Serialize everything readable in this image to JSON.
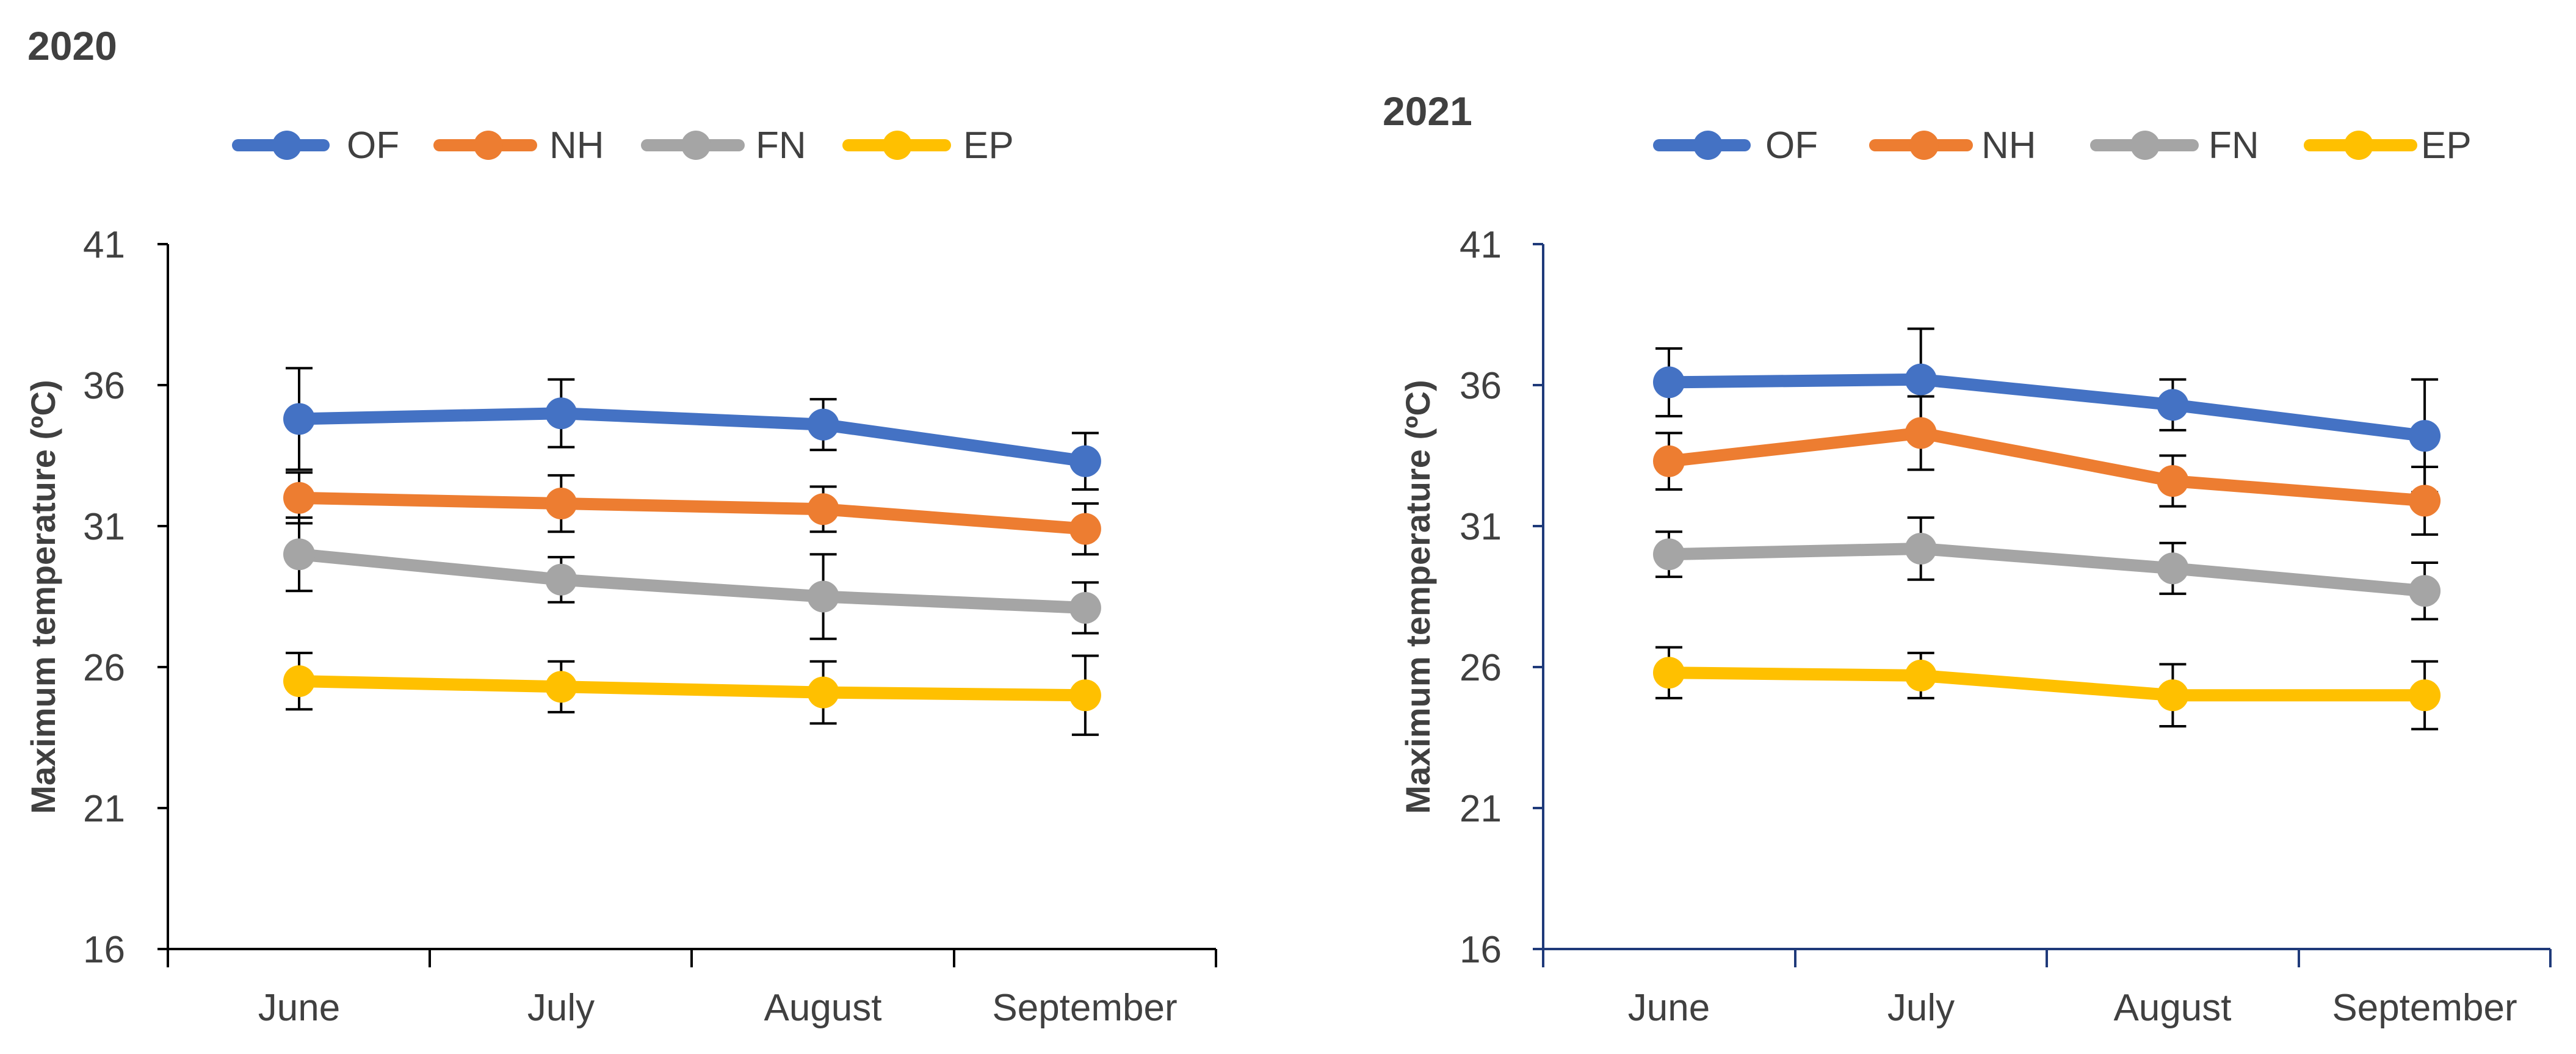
{
  "chart_data": [
    {
      "type": "line",
      "title": "2020",
      "xlabel": "",
      "ylabel": "Maximum temperature (ºC)",
      "ylim": [
        16,
        41
      ],
      "yticks": [
        "41",
        "36",
        "31",
        "26",
        "21",
        "16"
      ],
      "grid": false,
      "legend_position": "top",
      "categories": [
        "June",
        "July",
        "August",
        "September"
      ],
      "series": [
        {
          "name": "OF",
          "color": "#4472C4",
          "values": [
            34.8,
            35.0,
            34.6,
            33.3
          ],
          "errors": [
            1.8,
            1.2,
            0.9,
            1.0
          ]
        },
        {
          "name": "NH",
          "color": "#ED7D31",
          "values": [
            32.0,
            31.8,
            31.6,
            30.9
          ],
          "errors": [
            0.9,
            1.0,
            0.8,
            0.9
          ]
        },
        {
          "name": "FN",
          "color": "#A5A5A5",
          "values": [
            30.0,
            29.1,
            28.5,
            28.1
          ],
          "errors": [
            1.3,
            0.8,
            1.5,
            0.9
          ]
        },
        {
          "name": "EP",
          "color": "#FFC000",
          "values": [
            25.5,
            25.3,
            25.1,
            25.0
          ],
          "errors": [
            1.0,
            0.9,
            1.1,
            1.4
          ]
        }
      ]
    },
    {
      "type": "line",
      "title": "2021",
      "xlabel": "",
      "ylabel": "Maximum temperature (ºC)",
      "ylim": [
        16,
        41
      ],
      "yticks": [
        "41",
        "36",
        "31",
        "26",
        "21",
        "16"
      ],
      "grid": false,
      "legend_position": "top",
      "categories": [
        "June",
        "July",
        "August",
        "September"
      ],
      "series": [
        {
          "name": "OF",
          "color": "#4472C4",
          "values": [
            36.1,
            36.2,
            35.3,
            34.2
          ],
          "errors": [
            1.2,
            1.8,
            0.9,
            2.0
          ]
        },
        {
          "name": "NH",
          "color": "#ED7D31",
          "values": [
            33.3,
            34.3,
            32.6,
            31.9
          ],
          "errors": [
            1.0,
            1.3,
            0.9,
            1.2
          ]
        },
        {
          "name": "FN",
          "color": "#A5A5A5",
          "values": [
            30.0,
            30.2,
            29.5,
            28.7
          ],
          "errors": [
            0.8,
            1.1,
            0.9,
            1.0
          ]
        },
        {
          "name": "EP",
          "color": "#FFC000",
          "values": [
            25.8,
            25.7,
            25.0,
            25.0
          ],
          "errors": [
            0.9,
            0.8,
            1.1,
            1.2
          ]
        }
      ]
    }
  ]
}
